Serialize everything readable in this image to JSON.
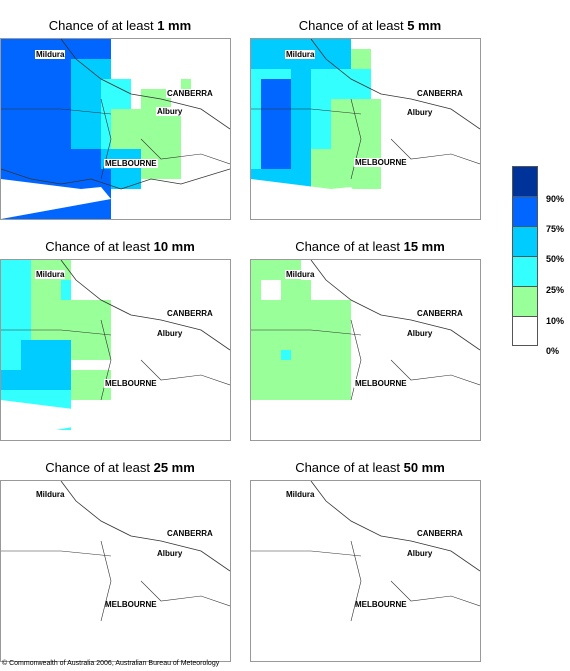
{
  "title_prefix": "Chance of at least",
  "panels": [
    {
      "amount": "1 mm"
    },
    {
      "amount": "5 mm"
    },
    {
      "amount": "10 mm"
    },
    {
      "amount": "15 mm"
    },
    {
      "amount": "25 mm"
    },
    {
      "amount": "50 mm"
    }
  ],
  "cities": {
    "mildura": "Mildura",
    "canberra": "CANBERRA",
    "albury": "Albury",
    "melbourne": "MELBOURNE"
  },
  "legend": {
    "labels": [
      "90%",
      "75%",
      "50%",
      "25%",
      "10%",
      "0%"
    ],
    "colors": [
      "#003399",
      "#0066ff",
      "#00ccff",
      "#33ffff",
      "#99ff99",
      "#ffffff"
    ]
  },
  "copyright": "© Commonwealth of Australia 2006, Australian Bureau of Meteorology"
}
